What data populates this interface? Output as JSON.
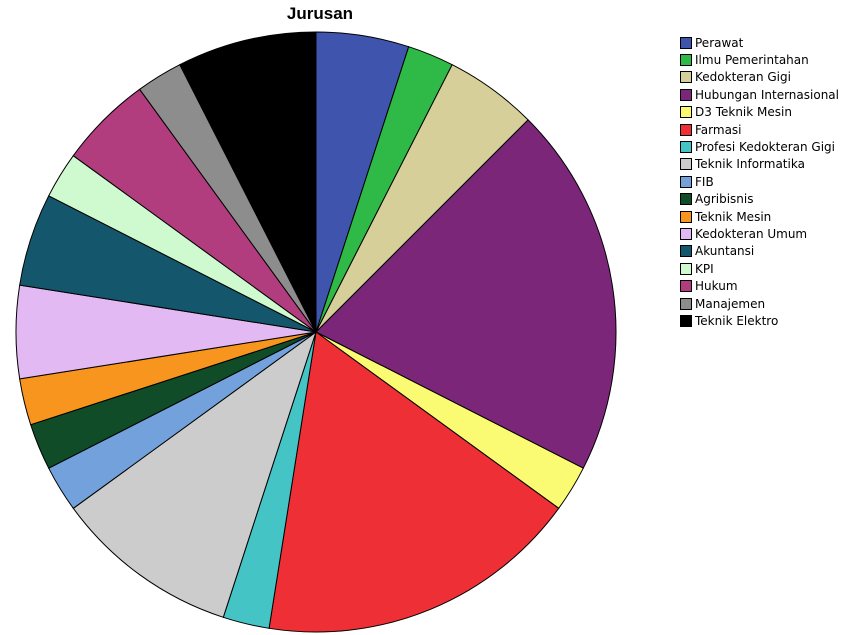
{
  "chart_data": {
    "type": "pie",
    "title": "Jurusan",
    "legend_position": "right",
    "categories": [
      "Perawat",
      "Ilmu Pemerintahan",
      "Kedokteran Gigi",
      "Hubungan Internasional",
      "D3 Teknik Mesin",
      "Farmasi",
      "Profesi Kedokteran Gigi",
      "Teknik Informatika",
      "FIB",
      "Agribisnis",
      "Teknik Mesin",
      "Kedokteran Umum",
      "Akuntansi",
      "KPI",
      "Hukum",
      "Manajemen",
      "Teknik Elektro"
    ],
    "values": [
      5.4,
      2.7,
      5.4,
      21.6,
      2.7,
      18.9,
      2.7,
      10.8,
      2.7,
      2.7,
      2.7,
      5.4,
      5.4,
      2.7,
      5.4,
      2.7,
      8.1
    ],
    "colors": [
      "#3f54ad",
      "#2fb946",
      "#d6cf9a",
      "#7b2679",
      "#fbfb73",
      "#ee3036",
      "#45c4c6",
      "#cccccc",
      "#72a1dc",
      "#0f4c27",
      "#f7951e",
      "#e2b9f2",
      "#14566b",
      "#cff9cf",
      "#b23d7e",
      "#8d8d8d",
      "#000000"
    ]
  }
}
